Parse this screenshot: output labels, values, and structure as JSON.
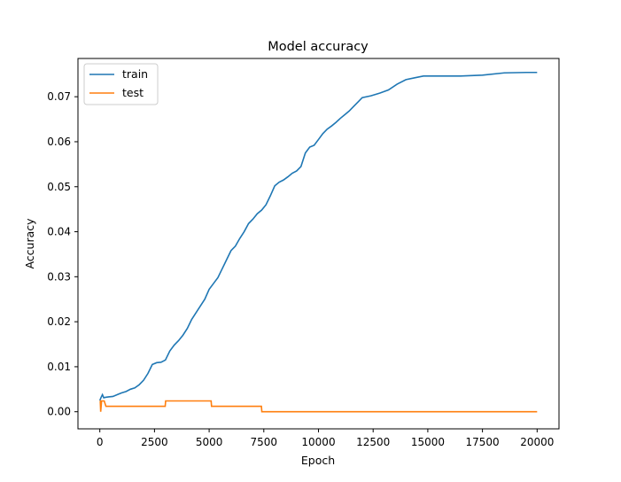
{
  "chart_data": {
    "type": "line",
    "title": "Model accuracy",
    "xlabel": "Epoch",
    "ylabel": "Accuracy",
    "xlim": [
      -1000,
      21000
    ],
    "ylim": [
      -0.0038,
      0.0785
    ],
    "xticks": [
      0,
      2500,
      5000,
      7500,
      10000,
      12500,
      15000,
      17500,
      20000
    ],
    "xtick_labels": [
      "0",
      "2500",
      "5000",
      "7500",
      "10000",
      "12500",
      "15000",
      "17500",
      "20000"
    ],
    "yticks": [
      0.0,
      0.01,
      0.02,
      0.03,
      0.04,
      0.05,
      0.06,
      0.07
    ],
    "ytick_labels": [
      "0.00",
      "0.01",
      "0.02",
      "0.03",
      "0.04",
      "0.05",
      "0.06",
      "0.07"
    ],
    "grid": false,
    "legend": "upper-left",
    "series": [
      {
        "name": "train",
        "color": "#1f77b4",
        "x": [
          0,
          60,
          120,
          180,
          260,
          400,
          600,
          800,
          1000,
          1200,
          1400,
          1600,
          1800,
          2000,
          2200,
          2400,
          2600,
          2800,
          3000,
          3200,
          3400,
          3600,
          3800,
          4000,
          4200,
          4400,
          4600,
          4800,
          5000,
          5200,
          5400,
          5600,
          5800,
          6000,
          6200,
          6400,
          6600,
          6800,
          7000,
          7200,
          7400,
          7600,
          7800,
          8000,
          8200,
          8400,
          8600,
          8800,
          9000,
          9200,
          9400,
          9600,
          9800,
          10000,
          10200,
          10400,
          10600,
          10800,
          11000,
          11200,
          11400,
          11600,
          11800,
          12000,
          12400,
          12800,
          13200,
          13600,
          14000,
          14400,
          14800,
          15500,
          16500,
          17500,
          18500,
          19500,
          20000
        ],
        "y": [
          0.0025,
          0.0032,
          0.0038,
          0.0031,
          0.0032,
          0.0033,
          0.0034,
          0.0038,
          0.0042,
          0.0045,
          0.005,
          0.0053,
          0.006,
          0.007,
          0.0085,
          0.0105,
          0.0109,
          0.011,
          0.0115,
          0.0135,
          0.0148,
          0.0158,
          0.017,
          0.0185,
          0.0205,
          0.022,
          0.0235,
          0.025,
          0.0272,
          0.0285,
          0.0298,
          0.0318,
          0.0338,
          0.0358,
          0.0368,
          0.0385,
          0.04,
          0.0418,
          0.0428,
          0.044,
          0.0448,
          0.046,
          0.048,
          0.0502,
          0.051,
          0.0515,
          0.0522,
          0.053,
          0.0535,
          0.0545,
          0.0575,
          0.0588,
          0.0592,
          0.0605,
          0.0618,
          0.0628,
          0.0635,
          0.0643,
          0.0652,
          0.066,
          0.0668,
          0.0678,
          0.0688,
          0.0698,
          0.0702,
          0.0708,
          0.0715,
          0.0728,
          0.0738,
          0.0742,
          0.0746,
          0.0746,
          0.0746,
          0.0748,
          0.0753,
          0.0754,
          0.0754
        ]
      },
      {
        "name": "test",
        "color": "#ff7f0e",
        "x": [
          0,
          20,
          40,
          80,
          120,
          160,
          200,
          280,
          2990,
          3010,
          5090,
          5110,
          7390,
          7410,
          20000
        ],
        "y": [
          0.0024,
          0.0024,
          0.0,
          0.0024,
          0.0024,
          0.0024,
          0.0024,
          0.0012,
          0.0012,
          0.0024,
          0.0024,
          0.0012,
          0.0012,
          0.0,
          0.0
        ]
      }
    ]
  }
}
